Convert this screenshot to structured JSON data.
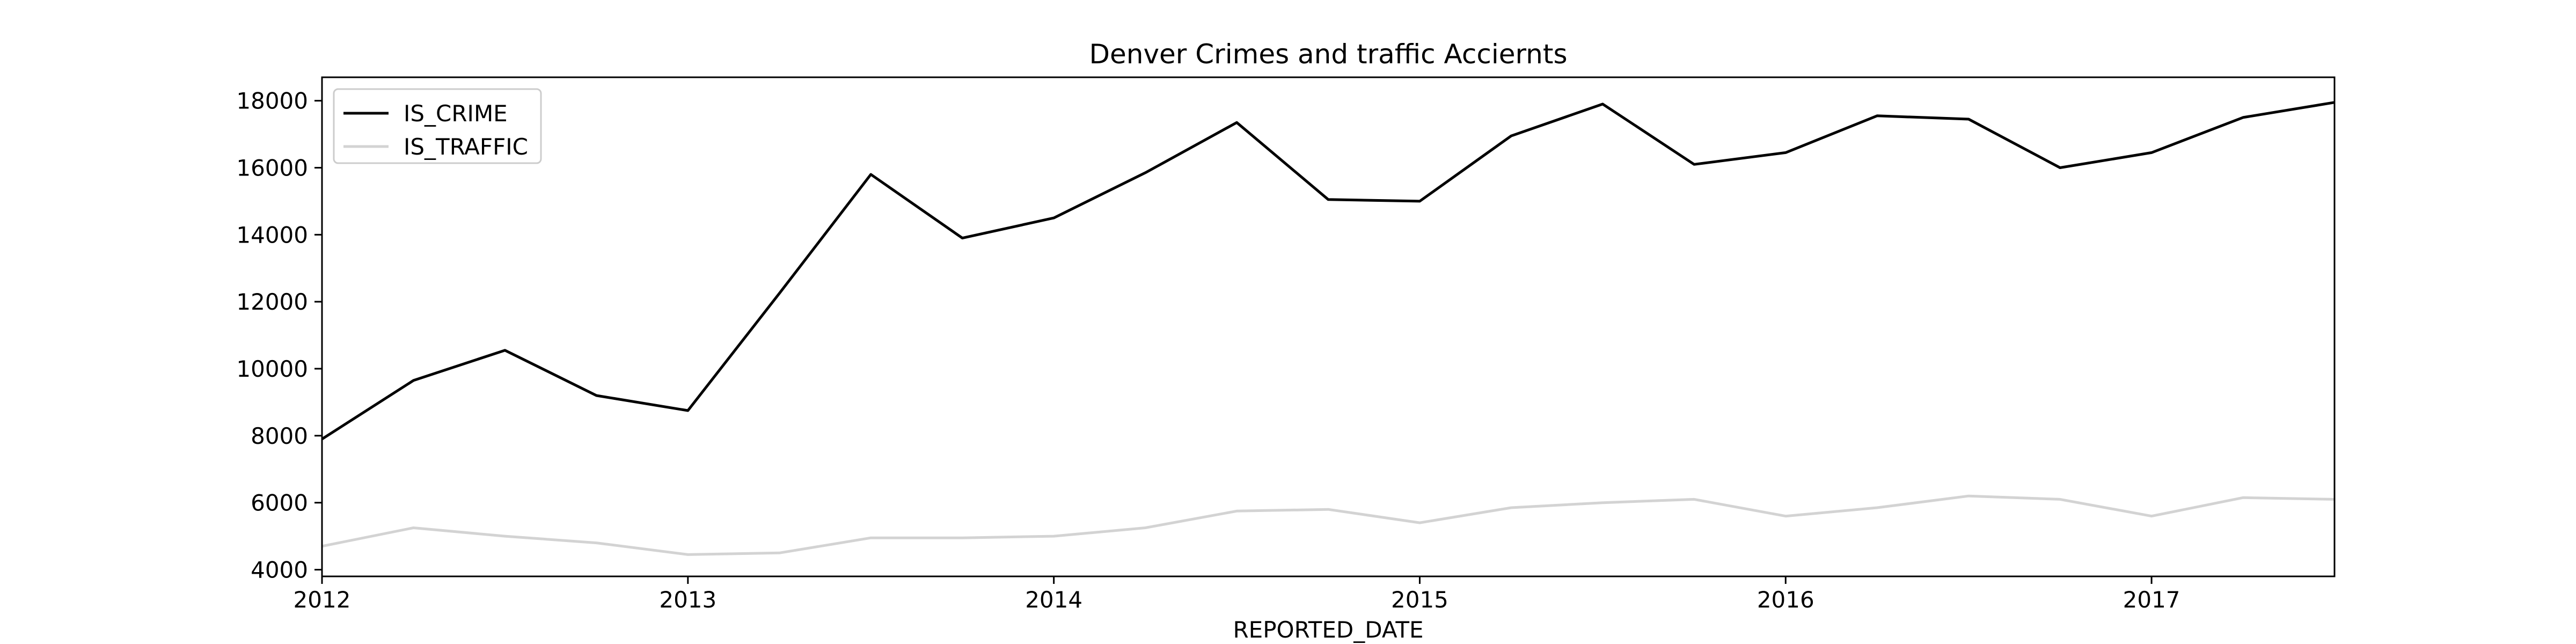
{
  "chart_data": {
    "type": "line",
    "title": "Denver Crimes and traffic Acciernts",
    "xlabel": "REPORTED_DATE",
    "ylabel": "",
    "x": [
      "2012-01",
      "2012-04",
      "2012-07",
      "2012-10",
      "2013-01",
      "2013-04",
      "2013-07",
      "2013-10",
      "2014-01",
      "2014-04",
      "2014-07",
      "2014-10",
      "2015-01",
      "2015-04",
      "2015-07",
      "2015-10",
      "2016-01",
      "2016-04",
      "2016-07",
      "2016-10",
      "2017-01",
      "2017-04",
      "2017-07"
    ],
    "x_ticks": [
      "2012",
      "2013",
      "2014",
      "2015",
      "2016",
      "2017"
    ],
    "ylim": [
      3800,
      18700
    ],
    "y_ticks": [
      4000,
      6000,
      8000,
      10000,
      12000,
      14000,
      16000,
      18000
    ],
    "grid": false,
    "legend_position": "upper-left",
    "series": [
      {
        "name": "IS_CRIME",
        "color": "#000000",
        "values": [
          7900,
          9650,
          10550,
          9200,
          8750,
          12250,
          15800,
          13900,
          14500,
          15850,
          17350,
          15050,
          15000,
          16950,
          17900,
          16100,
          16450,
          17550,
          17450,
          16000,
          16450,
          17500,
          17950
        ]
      },
      {
        "name": "IS_TRAFFIC",
        "color": "#d3d3d3",
        "values": [
          4700,
          5250,
          5000,
          4800,
          4450,
          4500,
          4950,
          4950,
          5000,
          5250,
          5750,
          5800,
          5400,
          5850,
          6000,
          6100,
          5600,
          5850,
          6200,
          6100,
          5600,
          6150,
          6100
        ]
      }
    ]
  }
}
